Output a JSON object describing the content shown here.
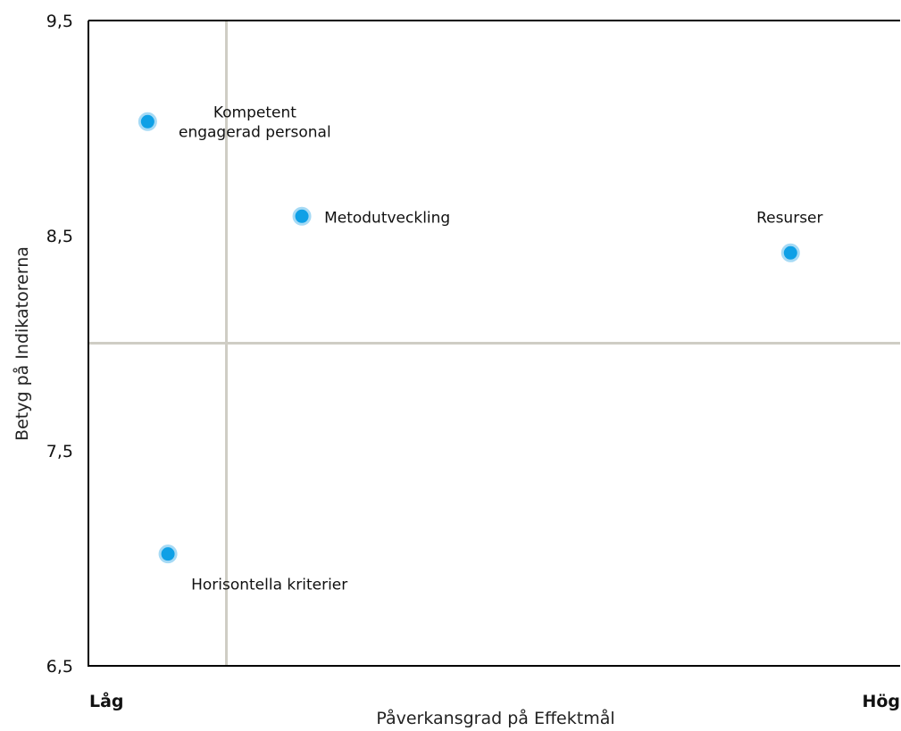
{
  "chart_data": {
    "type": "scatter",
    "title": "",
    "xlabel": "Påverkansgrad på Effektmål",
    "ylabel": "Betyg på Indikatorerna",
    "x_low_label": "Låg",
    "x_high_label": "Hög",
    "xlim": [
      0,
      1
    ],
    "ylim": [
      6.5,
      9.5
    ],
    "y_ticks": [
      "9,5",
      "8,5",
      "7,5",
      "6,5"
    ],
    "y_tick_values": [
      9.5,
      8.5,
      7.5,
      6.5
    ],
    "quadrant_x": 0.17,
    "quadrant_y": 8.0,
    "grid": false,
    "point_color": "#0fa0e6",
    "quadrant_line_color": "#cfcdc4",
    "points": [
      {
        "label_lines": [
          "Kompetent",
          "engagerad personal"
        ],
        "x": 0.073,
        "y": 9.03
      },
      {
        "label_lines": [
          "Metodutveckling"
        ],
        "x": 0.263,
        "y": 8.59
      },
      {
        "label_lines": [
          "Resurser"
        ],
        "x": 0.865,
        "y": 8.42
      },
      {
        "label_lines": [
          "Horisontella kriterier"
        ],
        "x": 0.098,
        "y": 7.02
      }
    ]
  }
}
